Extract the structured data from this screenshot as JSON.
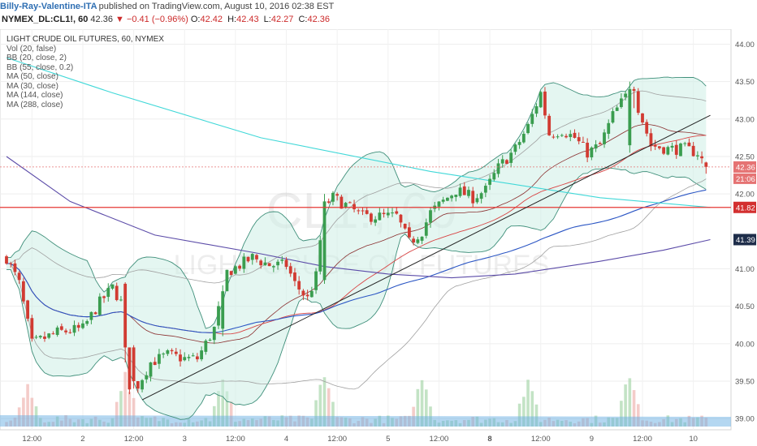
{
  "header": {
    "author": "Billy-Ray-Valentine-ITA",
    "published": "published on TradingView.com, August 10, 2016 02:38 EST",
    "symbol": "NYMEX_DL:CL1!, 60",
    "last": "42.36",
    "change": "▼ −0.41 (−0.96%)",
    "o_label": "O:",
    "o_value": "42.42",
    "h_label": "H:",
    "h_value": "42.43",
    "l_label": "L:",
    "l_value": "42.27",
    "c_label": "C:",
    "c_value": "42.36"
  },
  "legend": {
    "title": "LIGHT CRUDE OIL FUTURES, 60, NYMEX",
    "items": [
      "Vol (20, false)",
      "BB (20, close, 2)",
      "BB (55, close, 0.2)",
      "MA (50, close)",
      "MA (30, close)",
      "MA (144, close)",
      "MA (288, close)"
    ]
  },
  "watermark": {
    "symbol": "CL1!, 60",
    "name": "LIGHT CRUDE OIL FUTURES"
  },
  "price_axis_labels": [
    {
      "price": 44.0,
      "text": "44.00"
    },
    {
      "price": 43.5,
      "text": "43.50"
    },
    {
      "price": 43.0,
      "text": "43.00"
    },
    {
      "price": 42.5,
      "text": "42.50"
    },
    {
      "price": 42.0,
      "text": "42.00"
    },
    {
      "price": 41.0,
      "text": "41.00"
    },
    {
      "price": 40.5,
      "text": "40.50"
    },
    {
      "price": 40.0,
      "text": "40.00"
    },
    {
      "price": 39.5,
      "text": "39.50"
    },
    {
      "price": 39.0,
      "text": "39.00"
    }
  ],
  "price_tags": [
    {
      "price": 42.36,
      "text": "42.36",
      "color": "#e57373"
    },
    {
      "price": 41.82,
      "text": "41.82",
      "color": "#d32f2f"
    },
    {
      "price": 41.39,
      "text": "41.39",
      "color": "#1e2d4a"
    }
  ],
  "countdown": "21:06",
  "time_axis_labels": [
    {
      "bar": 6,
      "text": "12:00",
      "bold": false
    },
    {
      "bar": 18,
      "text": "2",
      "bold": false
    },
    {
      "bar": 30,
      "text": "12:00",
      "bold": false
    },
    {
      "bar": 42,
      "text": "3",
      "bold": false
    },
    {
      "bar": 54,
      "text": "12:00",
      "bold": false
    },
    {
      "bar": 66,
      "text": "4",
      "bold": false
    },
    {
      "bar": 78,
      "text": "12:00",
      "bold": false
    },
    {
      "bar": 90,
      "text": "5",
      "bold": false
    },
    {
      "bar": 102,
      "text": "12:00",
      "bold": false
    },
    {
      "bar": 114,
      "text": "8",
      "bold": true
    },
    {
      "bar": 126,
      "text": "12:00",
      "bold": false
    },
    {
      "bar": 138,
      "text": "9",
      "bold": false
    },
    {
      "bar": 150,
      "text": "12:00",
      "bold": false
    },
    {
      "bar": 162,
      "text": "10",
      "bold": false
    }
  ],
  "horizontal_lines": [
    {
      "price": 41.82,
      "color": "#e53935"
    }
  ],
  "colors": {
    "up_candle": "#3a9d4f",
    "down_candle": "#d13b32",
    "bb20_fill": "#cdeee6",
    "bb20_line": "#3f8f7a",
    "bb55_line": "#a0a0a0",
    "ma50": "#d84343",
    "ma30": "#8a2f2f",
    "ma144": "#2b56c4",
    "ma288": "#5b4ba8",
    "trend": "#222222",
    "cyan": "#40d8d8",
    "volume_up": "#a9d7ad",
    "volume_down": "#f0b7b2",
    "volume_ma": "#6ab0e3"
  },
  "chart_data": {
    "type": "candlestick",
    "symbol": "NYMEX_DL:CL1!",
    "interval": "60",
    "ylim": [
      38.85,
      44.2
    ],
    "waypoints": [
      [
        0,
        41.15
      ],
      [
        3,
        40.8
      ],
      [
        6,
        40.0
      ],
      [
        12,
        40.15
      ],
      [
        18,
        40.2
      ],
      [
        22,
        40.55
      ],
      [
        25,
        40.75
      ],
      [
        27,
        40.55
      ],
      [
        28,
        39.55
      ],
      [
        30,
        39.35
      ],
      [
        34,
        39.75
      ],
      [
        38,
        39.85
      ],
      [
        42,
        39.8
      ],
      [
        45,
        39.8
      ],
      [
        49,
        40.2
      ],
      [
        52,
        40.95
      ],
      [
        58,
        41.15
      ],
      [
        62,
        41.05
      ],
      [
        66,
        41.05
      ],
      [
        68,
        40.8
      ],
      [
        71,
        40.6
      ],
      [
        73,
        40.9
      ],
      [
        75,
        41.85
      ],
      [
        77,
        41.95
      ],
      [
        80,
        41.85
      ],
      [
        84,
        41.7
      ],
      [
        88,
        41.7
      ],
      [
        92,
        41.7
      ],
      [
        95,
        41.35
      ],
      [
        98,
        41.5
      ],
      [
        100,
        41.75
      ],
      [
        104,
        41.95
      ],
      [
        106,
        42.05
      ],
      [
        110,
        41.95
      ],
      [
        113,
        42.05
      ],
      [
        116,
        42.35
      ],
      [
        120,
        42.6
      ],
      [
        123,
        42.9
      ],
      [
        126,
        43.35
      ],
      [
        128,
        42.8
      ],
      [
        131,
        42.85
      ],
      [
        134,
        42.75
      ],
      [
        137,
        42.55
      ],
      [
        140,
        42.65
      ],
      [
        143,
        43.05
      ],
      [
        146,
        43.3
      ],
      [
        147,
        43.25
      ],
      [
        148,
        43.45
      ],
      [
        149,
        43.15
      ],
      [
        152,
        42.65
      ],
      [
        156,
        42.6
      ],
      [
        160,
        42.6
      ],
      [
        163,
        42.55
      ],
      [
        165,
        42.36
      ]
    ],
    "big_candles": [
      {
        "bar": 28,
        "open": 40.8,
        "high": 40.82,
        "low": 39.75,
        "close": 39.95
      },
      {
        "bar": 30,
        "open": 39.95,
        "high": 39.98,
        "low": 39.4,
        "close": 39.5
      },
      {
        "bar": 51,
        "open": 40.2,
        "high": 40.78,
        "low": 40.1,
        "close": 40.7
      },
      {
        "bar": 75,
        "open": 40.85,
        "high": 42.0,
        "low": 40.8,
        "close": 41.9
      },
      {
        "bar": 147,
        "open": 42.65,
        "high": 43.5,
        "low": 42.55,
        "close": 43.4
      },
      {
        "bar": 165,
        "open": 42.42,
        "high": 42.43,
        "low": 42.27,
        "close": 42.36
      }
    ],
    "last_ohlc": {
      "open": 42.42,
      "high": 42.43,
      "low": 42.27,
      "close": 42.36,
      "change": -0.41,
      "change_pct": -0.96
    },
    "cyan_line": [
      [
        0,
        43.82
      ],
      [
        25,
        43.35
      ],
      [
        60,
        42.75
      ],
      [
        100,
        42.3
      ],
      [
        140,
        41.95
      ],
      [
        166,
        41.82
      ]
    ],
    "ma288_line": [
      [
        0,
        42.5
      ],
      [
        15,
        41.9
      ],
      [
        35,
        41.45
      ],
      [
        60,
        41.2
      ],
      [
        75,
        41.03
      ],
      [
        90,
        40.93
      ],
      [
        105,
        40.88
      ],
      [
        120,
        40.93
      ],
      [
        140,
        41.1
      ],
      [
        155,
        41.25
      ],
      [
        166,
        41.39
      ]
    ],
    "trendline": [
      [
        32,
        39.25
      ],
      [
        166,
        43.05
      ]
    ],
    "volume_spikes": [
      [
        5,
        0.7
      ],
      [
        28,
        1
      ],
      [
        51,
        0.85
      ],
      [
        75,
        1
      ],
      [
        98,
        0.9
      ],
      [
        123,
        0.8
      ],
      [
        147,
        1
      ]
    ]
  }
}
